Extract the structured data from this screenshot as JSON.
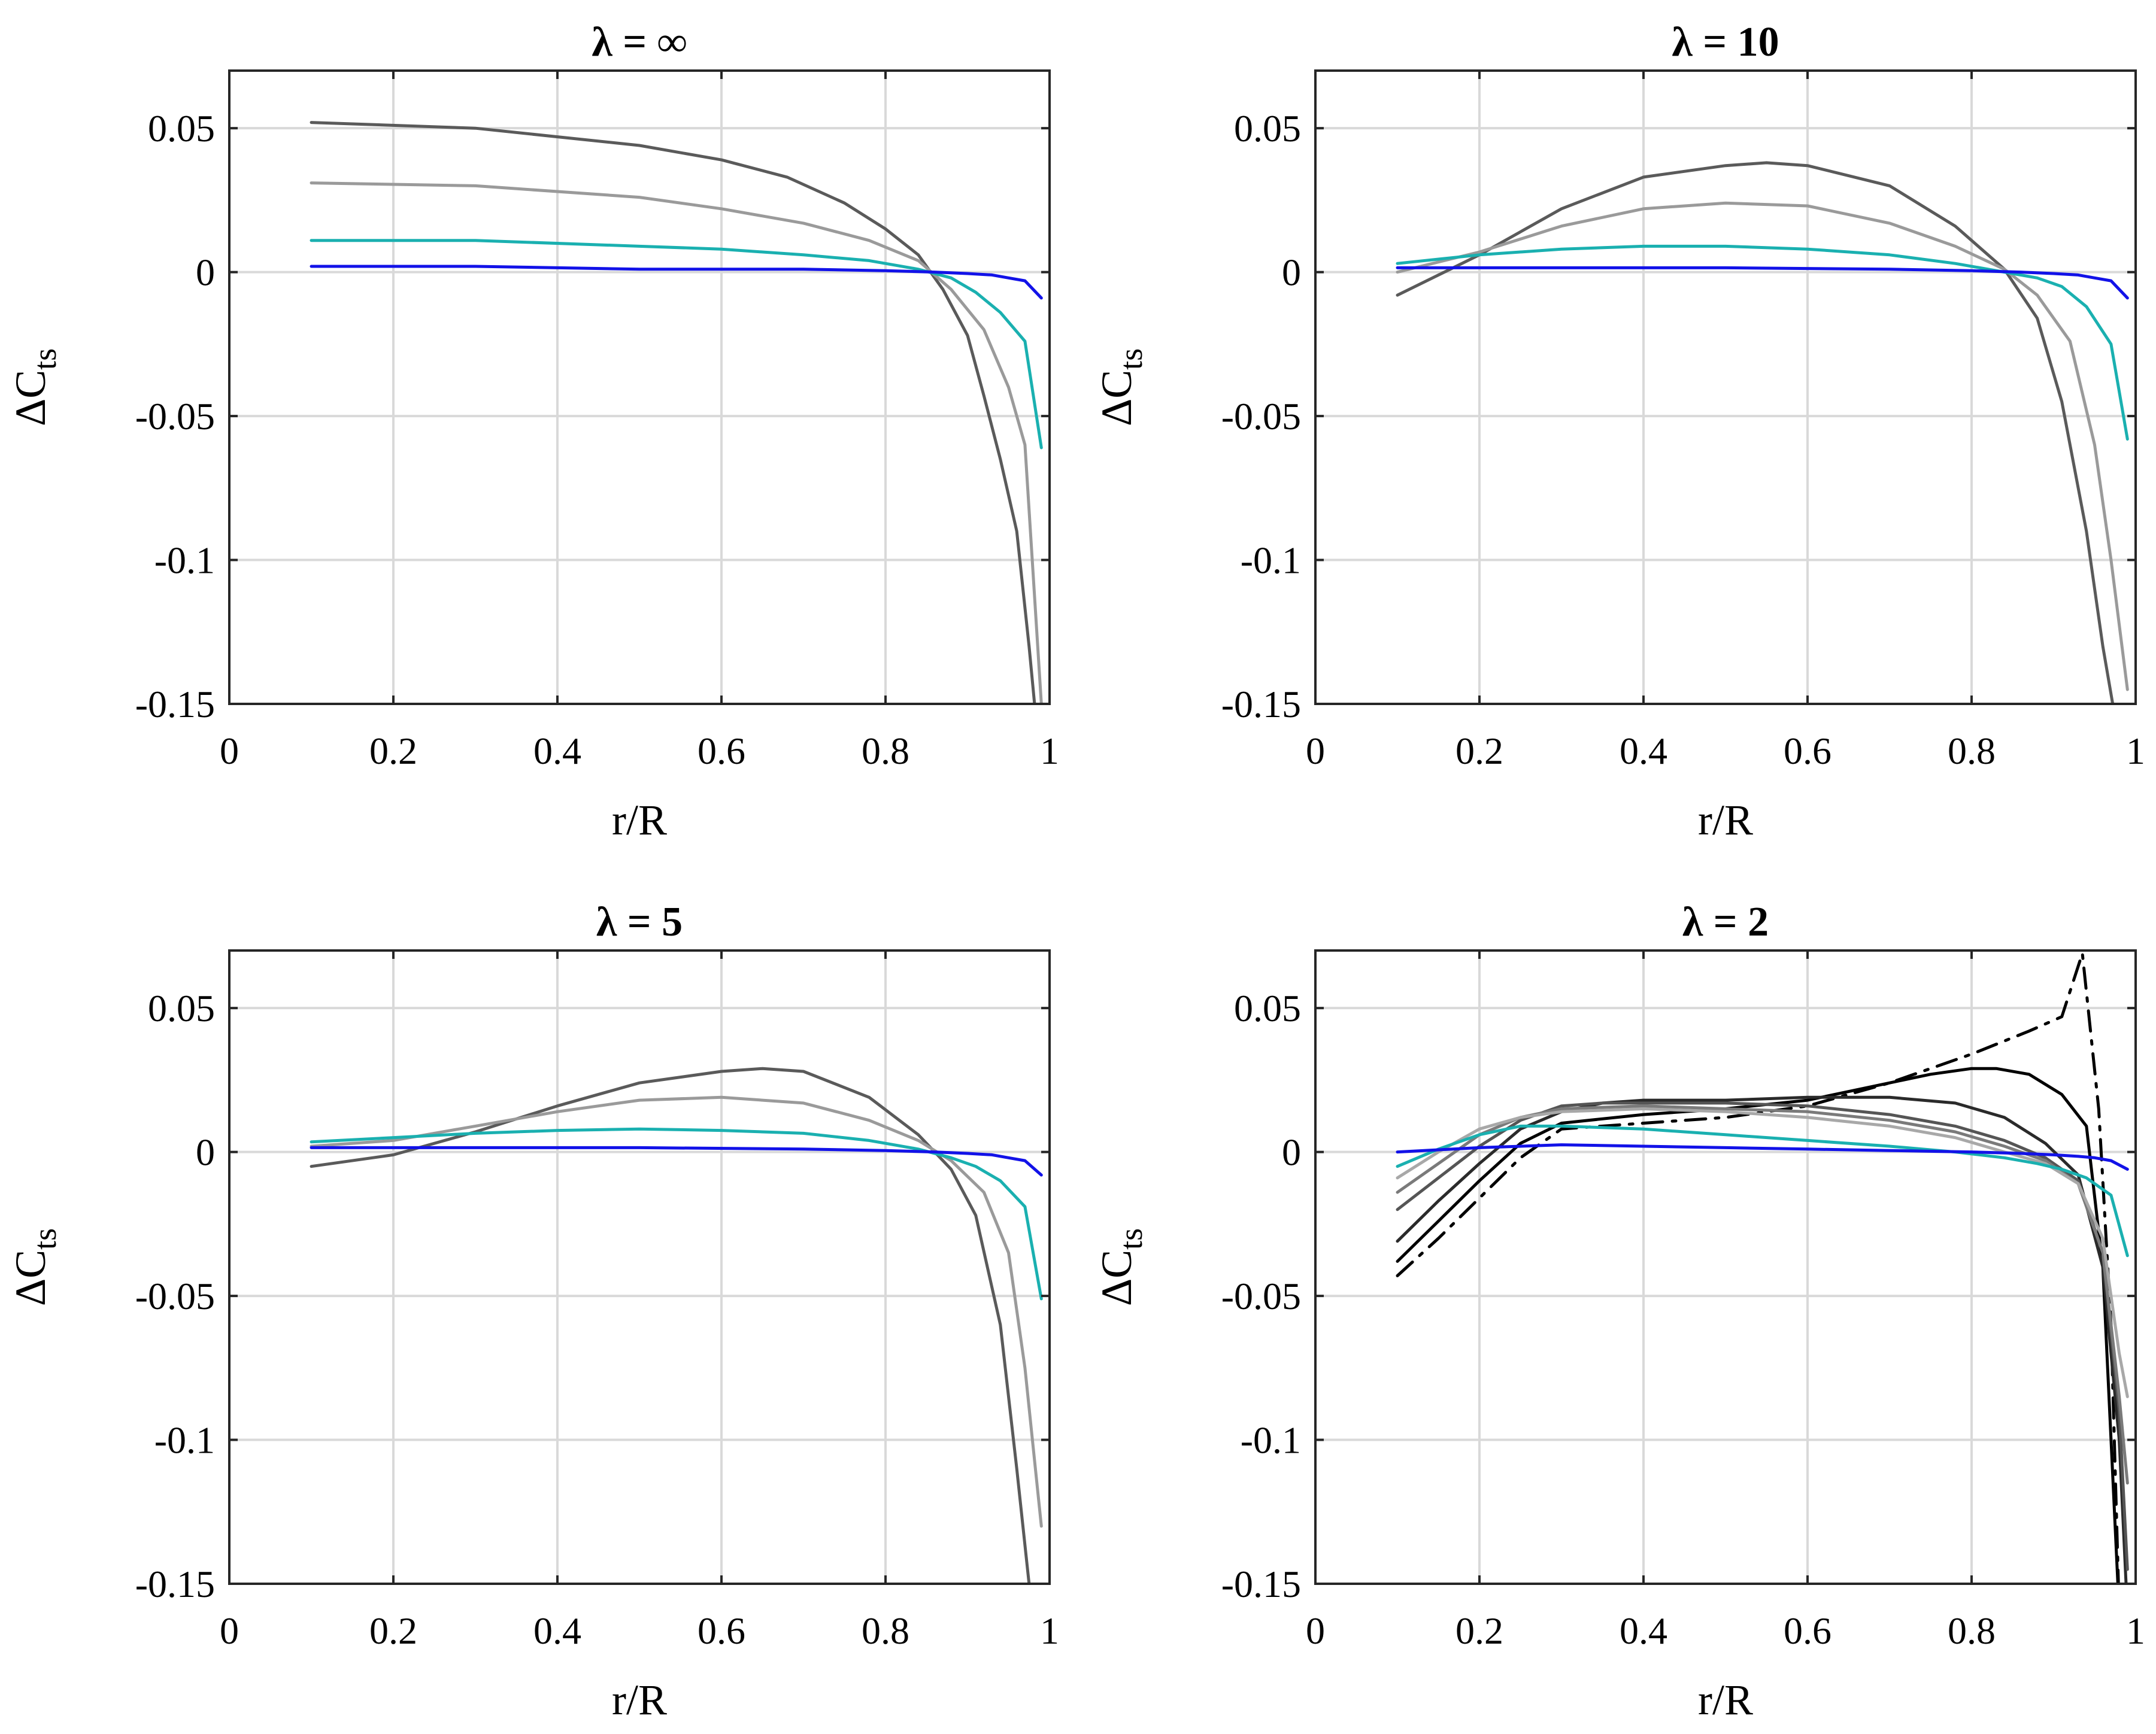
{
  "chart_data": [
    {
      "type": "line",
      "title": "λ = ∞",
      "xlabel": "r/R",
      "ylabel": "ΔC",
      "ylabel_subscript": "ts",
      "xlim": [
        0,
        1
      ],
      "ylim": [
        -0.15,
        0.07
      ],
      "xticks": [
        "0",
        "0.2",
        "0.4",
        "0.6",
        "0.8",
        "1"
      ],
      "yticks": [
        "0.05",
        "0",
        "-0.05",
        "-0.1",
        "-0.15"
      ],
      "grid": true,
      "series": [
        {
          "name": "dark-gray",
          "color": "#5a5a5a",
          "dash": "solid",
          "x": [
            0.1,
            0.3,
            0.5,
            0.6,
            0.68,
            0.75,
            0.8,
            0.84,
            0.87,
            0.9,
            0.92,
            0.94,
            0.96,
            0.975,
            0.985
          ],
          "y": [
            0.052,
            0.05,
            0.044,
            0.039,
            0.033,
            0.024,
            0.015,
            0.006,
            -0.006,
            -0.022,
            -0.043,
            -0.065,
            -0.09,
            -0.13,
            -0.16
          ]
        },
        {
          "name": "light-gray",
          "color": "#9a9a9a",
          "dash": "solid",
          "x": [
            0.1,
            0.3,
            0.5,
            0.6,
            0.7,
            0.78,
            0.84,
            0.88,
            0.92,
            0.95,
            0.97,
            0.99
          ],
          "y": [
            0.031,
            0.03,
            0.026,
            0.022,
            0.017,
            0.011,
            0.004,
            -0.006,
            -0.02,
            -0.04,
            -0.06,
            -0.15
          ]
        },
        {
          "name": "teal",
          "color": "#1ab0b0",
          "dash": "solid",
          "x": [
            0.1,
            0.3,
            0.5,
            0.6,
            0.7,
            0.78,
            0.84,
            0.88,
            0.91,
            0.94,
            0.97,
            0.99
          ],
          "y": [
            0.011,
            0.011,
            0.009,
            0.008,
            0.006,
            0.004,
            0.001,
            -0.002,
            -0.007,
            -0.014,
            -0.024,
            -0.061
          ]
        },
        {
          "name": "blue",
          "color": "#1212e8",
          "dash": "solid",
          "x": [
            0.1,
            0.3,
            0.5,
            0.7,
            0.8,
            0.86,
            0.9,
            0.93,
            0.95,
            0.97,
            0.99
          ],
          "y": [
            0.002,
            0.002,
            0.001,
            0.001,
            0.0005,
            0,
            -0.0005,
            -0.001,
            -0.002,
            -0.003,
            -0.009
          ]
        }
      ]
    },
    {
      "type": "line",
      "title": "λ = 10",
      "xlabel": "r/R",
      "ylabel": "ΔC",
      "ylabel_subscript": "ts",
      "xlim": [
        0,
        1
      ],
      "ylim": [
        -0.15,
        0.07
      ],
      "xticks": [
        "0",
        "0.2",
        "0.4",
        "0.6",
        "0.8",
        "1"
      ],
      "yticks": [
        "0.05",
        "0",
        "-0.05",
        "-0.1",
        "-0.15"
      ],
      "grid": true,
      "series": [
        {
          "name": "dark-gray",
          "color": "#5a5a5a",
          "dash": "solid",
          "x": [
            0.1,
            0.2,
            0.3,
            0.4,
            0.5,
            0.55,
            0.6,
            0.7,
            0.78,
            0.84,
            0.88,
            0.91,
            0.94,
            0.96,
            0.975
          ],
          "y": [
            -0.008,
            0.006,
            0.022,
            0.033,
            0.037,
            0.038,
            0.037,
            0.03,
            0.016,
            0.001,
            -0.016,
            -0.045,
            -0.09,
            -0.13,
            -0.155
          ]
        },
        {
          "name": "light-gray",
          "color": "#9a9a9a",
          "dash": "solid",
          "x": [
            0.1,
            0.2,
            0.3,
            0.4,
            0.5,
            0.6,
            0.7,
            0.78,
            0.84,
            0.88,
            0.92,
            0.95,
            0.97,
            0.99
          ],
          "y": [
            0.0,
            0.007,
            0.016,
            0.022,
            0.024,
            0.023,
            0.017,
            0.009,
            0.001,
            -0.008,
            -0.024,
            -0.06,
            -0.1,
            -0.145
          ]
        },
        {
          "name": "teal",
          "color": "#1ab0b0",
          "dash": "solid",
          "x": [
            0.1,
            0.2,
            0.3,
            0.4,
            0.5,
            0.6,
            0.7,
            0.78,
            0.84,
            0.88,
            0.91,
            0.94,
            0.97,
            0.99
          ],
          "y": [
            0.003,
            0.006,
            0.008,
            0.009,
            0.009,
            0.008,
            0.006,
            0.003,
            0.0,
            -0.002,
            -0.005,
            -0.012,
            -0.025,
            -0.058
          ]
        },
        {
          "name": "blue",
          "color": "#1212e8",
          "dash": "solid",
          "x": [
            0.1,
            0.3,
            0.5,
            0.7,
            0.8,
            0.86,
            0.9,
            0.93,
            0.95,
            0.97,
            0.99
          ],
          "y": [
            0.0015,
            0.0015,
            0.0015,
            0.001,
            0.0005,
            0,
            -0.0005,
            -0.001,
            -0.002,
            -0.003,
            -0.009
          ]
        }
      ]
    },
    {
      "type": "line",
      "title": "λ = 5",
      "xlabel": "r/R",
      "ylabel": "ΔC",
      "ylabel_subscript": "ts",
      "xlim": [
        0,
        1
      ],
      "ylim": [
        -0.15,
        0.07
      ],
      "xticks": [
        "0",
        "0.2",
        "0.4",
        "0.6",
        "0.8",
        "1"
      ],
      "yticks": [
        "0.05",
        "0",
        "-0.05",
        "-0.1",
        "-0.15"
      ],
      "grid": true,
      "series": [
        {
          "name": "dark-gray",
          "color": "#5a5a5a",
          "dash": "solid",
          "x": [
            0.1,
            0.2,
            0.3,
            0.4,
            0.5,
            0.6,
            0.65,
            0.7,
            0.78,
            0.84,
            0.88,
            0.91,
            0.94,
            0.96,
            0.975
          ],
          "y": [
            -0.005,
            -0.001,
            0.007,
            0.016,
            0.024,
            0.028,
            0.029,
            0.028,
            0.019,
            0.006,
            -0.006,
            -0.022,
            -0.06,
            -0.11,
            -0.15
          ]
        },
        {
          "name": "light-gray",
          "color": "#9a9a9a",
          "dash": "solid",
          "x": [
            0.1,
            0.2,
            0.3,
            0.4,
            0.5,
            0.6,
            0.7,
            0.78,
            0.84,
            0.88,
            0.92,
            0.95,
            0.97,
            0.99
          ],
          "y": [
            0.002,
            0.004,
            0.009,
            0.014,
            0.018,
            0.019,
            0.017,
            0.011,
            0.004,
            -0.003,
            -0.014,
            -0.035,
            -0.075,
            -0.13
          ]
        },
        {
          "name": "teal",
          "color": "#1ab0b0",
          "dash": "solid",
          "x": [
            0.1,
            0.2,
            0.3,
            0.4,
            0.5,
            0.6,
            0.7,
            0.78,
            0.84,
            0.88,
            0.91,
            0.94,
            0.97,
            0.99
          ],
          "y": [
            0.0035,
            0.005,
            0.0065,
            0.0075,
            0.008,
            0.0075,
            0.0065,
            0.004,
            0.001,
            -0.002,
            -0.005,
            -0.01,
            -0.019,
            -0.051
          ]
        },
        {
          "name": "blue",
          "color": "#1212e8",
          "dash": "solid",
          "x": [
            0.1,
            0.3,
            0.5,
            0.7,
            0.8,
            0.86,
            0.9,
            0.93,
            0.95,
            0.97,
            0.99
          ],
          "y": [
            0.0015,
            0.0015,
            0.0015,
            0.001,
            0.0005,
            0,
            -0.0005,
            -0.001,
            -0.002,
            -0.003,
            -0.008
          ]
        }
      ]
    },
    {
      "type": "line",
      "title": "λ = 2",
      "xlabel": "r/R",
      "ylabel": "ΔC",
      "ylabel_subscript": "ts",
      "xlim": [
        0,
        1
      ],
      "ylim": [
        -0.15,
        0.07
      ],
      "xticks": [
        "0",
        "0.2",
        "0.4",
        "0.6",
        "0.8",
        "1"
      ],
      "yticks": [
        "0.05",
        "0",
        "-0.05",
        "-0.1",
        "-0.15"
      ],
      "grid": true,
      "series": [
        {
          "name": "dash-dot",
          "color": "#000000",
          "dash": "dashdot",
          "x": [
            0.1,
            0.15,
            0.2,
            0.25,
            0.3,
            0.4,
            0.5,
            0.6,
            0.7,
            0.8,
            0.87,
            0.91,
            0.935,
            0.955,
            0.97,
            0.98
          ],
          "y": [
            -0.043,
            -0.03,
            -0.016,
            -0.002,
            0.008,
            0.01,
            0.012,
            0.016,
            0.024,
            0.034,
            0.042,
            0.047,
            0.069,
            0.015,
            -0.06,
            -0.16
          ]
        },
        {
          "name": "black",
          "color": "#000000",
          "dash": "solid",
          "x": [
            0.1,
            0.15,
            0.2,
            0.25,
            0.3,
            0.4,
            0.5,
            0.6,
            0.7,
            0.75,
            0.8,
            0.83,
            0.87,
            0.91,
            0.94,
            0.96,
            0.97,
            0.98
          ],
          "y": [
            -0.038,
            -0.024,
            -0.01,
            0.003,
            0.01,
            0.013,
            0.015,
            0.018,
            0.024,
            0.027,
            0.029,
            0.029,
            0.027,
            0.02,
            0.009,
            -0.04,
            -0.1,
            -0.16
          ]
        },
        {
          "name": "near-black",
          "color": "#2a2a2a",
          "dash": "solid",
          "x": [
            0.1,
            0.15,
            0.2,
            0.25,
            0.3,
            0.35,
            0.4,
            0.5,
            0.6,
            0.7,
            0.78,
            0.84,
            0.89,
            0.93,
            0.96,
            0.98,
            0.99
          ],
          "y": [
            -0.031,
            -0.017,
            -0.004,
            0.008,
            0.014,
            0.017,
            0.018,
            0.018,
            0.019,
            0.019,
            0.017,
            0.012,
            0.003,
            -0.008,
            -0.04,
            -0.1,
            -0.16
          ]
        },
        {
          "name": "dark-gray",
          "color": "#555555",
          "dash": "solid",
          "x": [
            0.1,
            0.15,
            0.2,
            0.25,
            0.3,
            0.35,
            0.4,
            0.5,
            0.6,
            0.7,
            0.78,
            0.84,
            0.89,
            0.93,
            0.96,
            0.98,
            0.99
          ],
          "y": [
            -0.02,
            -0.009,
            0.002,
            0.011,
            0.016,
            0.017,
            0.017,
            0.017,
            0.016,
            0.013,
            0.009,
            0.004,
            -0.002,
            -0.01,
            -0.035,
            -0.09,
            -0.145
          ]
        },
        {
          "name": "gray",
          "color": "#7a7a7a",
          "dash": "solid",
          "x": [
            0.1,
            0.15,
            0.2,
            0.25,
            0.3,
            0.4,
            0.5,
            0.6,
            0.7,
            0.78,
            0.84,
            0.89,
            0.93,
            0.96,
            0.98,
            0.99
          ],
          "y": [
            -0.014,
            -0.004,
            0.006,
            0.012,
            0.015,
            0.016,
            0.015,
            0.014,
            0.011,
            0.007,
            0.002,
            -0.003,
            -0.011,
            -0.035,
            -0.085,
            -0.115
          ]
        },
        {
          "name": "light-gray",
          "color": "#a8a8a8",
          "dash": "solid",
          "x": [
            0.1,
            0.15,
            0.2,
            0.25,
            0.3,
            0.4,
            0.5,
            0.6,
            0.7,
            0.78,
            0.84,
            0.89,
            0.93,
            0.96,
            0.98,
            0.99
          ],
          "y": [
            -0.009,
            0.0,
            0.008,
            0.012,
            0.014,
            0.015,
            0.014,
            0.012,
            0.009,
            0.005,
            0.0,
            -0.004,
            -0.011,
            -0.03,
            -0.07,
            -0.085
          ]
        },
        {
          "name": "teal",
          "color": "#1ab0b0",
          "dash": "solid",
          "x": [
            0.1,
            0.15,
            0.2,
            0.25,
            0.3,
            0.4,
            0.5,
            0.6,
            0.7,
            0.78,
            0.84,
            0.88,
            0.91,
            0.94,
            0.97,
            0.99
          ],
          "y": [
            -0.005,
            0.001,
            0.006,
            0.009,
            0.009,
            0.008,
            0.006,
            0.004,
            0.002,
            0.0,
            -0.002,
            -0.004,
            -0.006,
            -0.009,
            -0.015,
            -0.036
          ]
        },
        {
          "name": "blue",
          "color": "#1212e8",
          "dash": "solid",
          "x": [
            0.1,
            0.2,
            0.3,
            0.4,
            0.5,
            0.6,
            0.7,
            0.8,
            0.86,
            0.9,
            0.93,
            0.95,
            0.97,
            0.99
          ],
          "y": [
            0.0,
            0.0015,
            0.0025,
            0.002,
            0.0015,
            0.001,
            0.0005,
            0.0,
            -0.0005,
            -0.001,
            -0.0015,
            -0.002,
            -0.003,
            -0.006
          ]
        }
      ]
    }
  ]
}
